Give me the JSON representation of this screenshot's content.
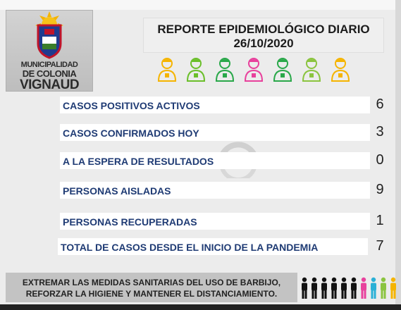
{
  "logo": {
    "lines": [
      "MUNICIPALIDAD",
      "DE COLONIA",
      "VIGNAUD"
    ]
  },
  "title": {
    "line1": "REPORTE EPIDEMIOLÓGICO DIARIO",
    "date": "26/10/2020"
  },
  "worker_icons": [
    {
      "name": "worker-1-icon",
      "color": "#f5b400"
    },
    {
      "name": "worker-2-icon",
      "color": "#6bbf2a"
    },
    {
      "name": "worker-3-icon",
      "color": "#2aa84a"
    },
    {
      "name": "worker-4-icon",
      "color": "#e8419c"
    },
    {
      "name": "worker-5-icon",
      "color": "#2aa84a"
    },
    {
      "name": "worker-6-icon",
      "color": "#8bc43f"
    },
    {
      "name": "worker-7-icon",
      "color": "#f5b400"
    }
  ],
  "stats": [
    {
      "label": "CASOS POSITIVOS ACTIVOS",
      "value": "6"
    },
    {
      "label": "CASOS CONFIRMADOS HOY",
      "value": "3"
    },
    {
      "label": "A LA ESPERA DE RESULTADOS",
      "value": "0"
    },
    {
      "label": "PERSONAS AISLADAS",
      "value": "9"
    },
    {
      "label": "PERSONAS RECUPERADAS",
      "value": "1"
    },
    {
      "label": "TOTAL DE CASOS DESDE EL INICIO DE LA PANDEMIA",
      "value": "7"
    }
  ],
  "footer": {
    "line1": "EXTREMAR LAS MEDIDAS SANITARIAS DEL USO DE BARBIJO,",
    "line2": "REFORZAR LA HIGIENE Y MANTENER EL DISTANCIAMIENTO."
  },
  "people_colors": [
    "#111111",
    "#111111",
    "#111111",
    "#111111",
    "#111111",
    "#111111",
    "#e8419c",
    "#2ab0d6",
    "#8bc43f",
    "#f5b400"
  ]
}
